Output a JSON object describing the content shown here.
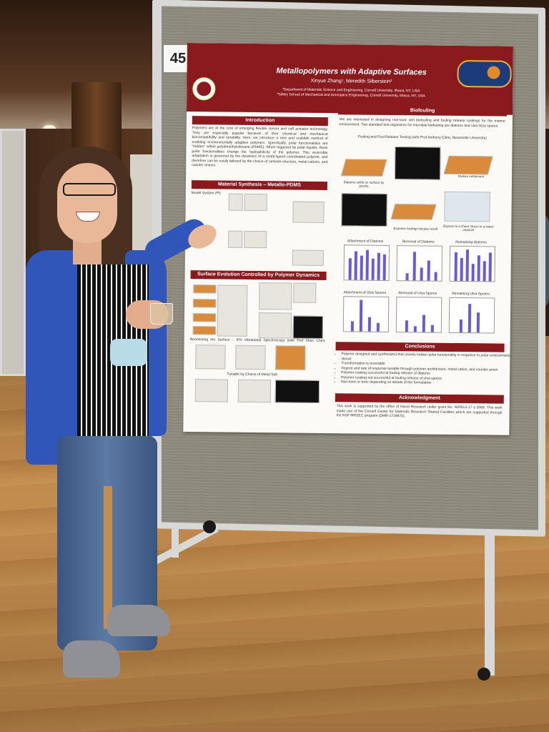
{
  "board": {
    "number": "45"
  },
  "poster": {
    "title": "Metallopolymers with Adaptive Surfaces",
    "authors": "Xinyue Zhang¹, Meredith Silberstein²",
    "affiliation_1": "¹Department of Materials Science and Engineering, Cornell University, Ithaca, NY, USA",
    "affiliation_2": "²Sibley School of Mechanical and Aerospace Engineering, Cornell University, Ithaca, NY, USA",
    "sections": {
      "introduction": {
        "heading": "Introduction",
        "text": "Polymers are at the core of emerging flexible sensor and soft actuator technology. They are especially popular because of their chemical and mechanical biocompatibility and tunability. Here, we introduce a new and scalable method of enabling environmentally adaptive polymers. Specifically, polar functionalities are \"hidden\" within polydimethylsiloxane (PDMS). When triggered by polar liquids, these polar functionalities change the hydrophilicity of the polymer. This reversible adaptation is governed by the dynamics of a metal-ligand coordinated polymer, and therefore can be easily tailored by the choice of network structure, metal cations, and counter anions."
      },
      "synthesis": {
        "heading": "Material Synthesis – Metallo-PDMS",
        "label": "Model System (PI)"
      },
      "surface": {
        "heading": "Surface Evolution Controlled by Polymer Dynamics",
        "label_1": "Reorienting the Surface – IFN Vibrational Spectroscopy (with Prof Shen Chen, University of Michigan)",
        "label_2": "Tunable by Choice of Metal Salt"
      },
      "biofouling": {
        "heading": "Biofouling",
        "text": "We are interested in designing non-toxic anti biofouling and fouling release coatings for the marine environment. Two standard test organisms for microbial biofouling are diatoms and ulva linza spores.",
        "subheading": "Fouling and Foul Release Testing (with Prof Anthony Clare, Newcastle University)",
        "fig_labels": [
          "Diatoms settle on surface by gravity",
          "Diatom settlement",
          "Examine fouling+release result",
          "Expose to a shear stress in a water channel"
        ],
        "chart_titles": [
          "Attachment of Diatoms",
          "Removal of Diatoms",
          "Remaining Diatoms",
          "Attachment of Ulva Spores",
          "Removal of Ulva Spores",
          "Remaining Ulva Spores"
        ]
      },
      "conclusions": {
        "heading": "Conclusions",
        "bullets": [
          "Polymer designed and synthesized that unveils hidden polar functionality in response to polar environmental stimuli",
          "Transformation is reversible",
          "Degree and rate of response tunable through polymer architecture, metal cation, and counter anion",
          "Polymer coating successful at fouling release of diatoms",
          "Polymer coating not successful at fouling release of ulva spores",
          "Non-toxic or toxic depending on details of the formulation"
        ]
      },
      "acknowledgment": {
        "heading": "Acknowledgment",
        "text": "This work is supported by the office of Naval Research under grant No. N00014-17-1-2669. This work made use of the Cornell Center for Materials Research Shared Facilities which are supported through the NSF MRSEC program (DMR-1719875)."
      }
    }
  },
  "colors": {
    "poster_maroon": "#8b1a1f",
    "board_gray": "#8f8a7e",
    "cardigan_blue": "#2f56b8",
    "floor_wood": "#c38d4f",
    "chart_bar": "#6b5bd1"
  }
}
